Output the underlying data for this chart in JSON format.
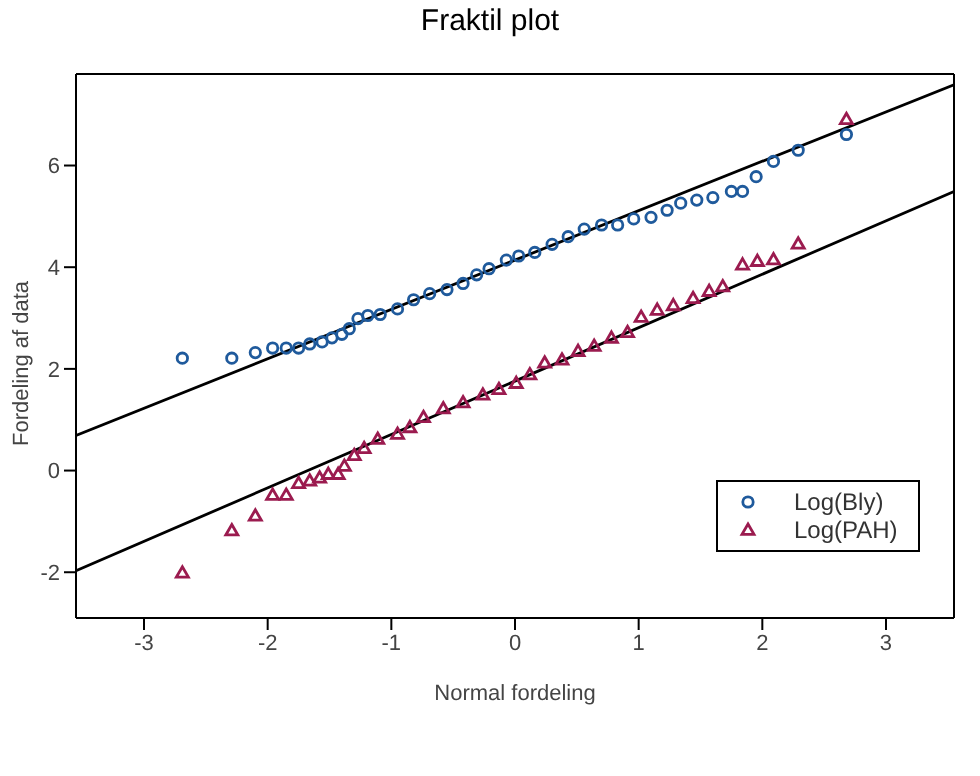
{
  "chart_data": {
    "type": "scatter",
    "title": "Fraktil plot",
    "xlabel": "Normal fordeling",
    "ylabel": "Fordeling af data",
    "xlim": [
      -3.55,
      3.55
    ],
    "ylim": [
      -2.9,
      7.8
    ],
    "xticks": [
      -3,
      -2,
      -1,
      0,
      1,
      2,
      3
    ],
    "yticks": [
      -2,
      0,
      2,
      4,
      6
    ],
    "grid": false,
    "legend": "bottom right",
    "series": [
      {
        "name": "Log(Bly)",
        "color": "#1f5a9c",
        "marker": "circle",
        "x": [
          -2.69,
          -2.29,
          -2.1,
          -1.96,
          -1.85,
          -1.75,
          -1.66,
          -1.56,
          -1.48,
          -1.4,
          -1.34,
          -1.27,
          -1.19,
          -1.09,
          -0.95,
          -0.82,
          -0.69,
          -0.55,
          -0.42,
          -0.31,
          -0.21,
          -0.07,
          0.03,
          0.16,
          0.3,
          0.43,
          0.56,
          0.7,
          0.83,
          0.96,
          1.1,
          1.23,
          1.34,
          1.47,
          1.6,
          1.75,
          1.84,
          1.95,
          2.09,
          2.29,
          2.68
        ],
        "values": [
          2.21,
          2.21,
          2.32,
          2.41,
          2.41,
          2.41,
          2.49,
          2.53,
          2.61,
          2.68,
          2.79,
          2.99,
          3.05,
          3.07,
          3.18,
          3.36,
          3.48,
          3.56,
          3.68,
          3.85,
          3.97,
          4.14,
          4.22,
          4.29,
          4.45,
          4.6,
          4.75,
          4.83,
          4.83,
          4.95,
          4.98,
          5.12,
          5.26,
          5.32,
          5.37,
          5.49,
          5.49,
          5.78,
          6.08,
          6.3,
          6.61
        ]
      },
      {
        "name": "Log(PAH)",
        "color": "#9b1b4f",
        "marker": "triangle",
        "x": [
          -2.69,
          -2.29,
          -2.1,
          -1.96,
          -1.85,
          -1.75,
          -1.66,
          -1.58,
          -1.51,
          -1.43,
          -1.38,
          -1.3,
          -1.22,
          -1.11,
          -0.95,
          -0.85,
          -0.74,
          -0.58,
          -0.42,
          -0.26,
          -0.13,
          0.01,
          0.12,
          0.24,
          0.38,
          0.51,
          0.64,
          0.78,
          0.91,
          1.02,
          1.15,
          1.28,
          1.44,
          1.57,
          1.68,
          1.84,
          1.96,
          2.09,
          2.29,
          2.68
        ],
        "values": [
          -2.01,
          -1.18,
          -0.89,
          -0.48,
          -0.48,
          -0.25,
          -0.2,
          -0.14,
          -0.07,
          -0.07,
          0.09,
          0.3,
          0.44,
          0.62,
          0.72,
          0.85,
          1.05,
          1.22,
          1.34,
          1.49,
          1.6,
          1.72,
          1.89,
          2.12,
          2.18,
          2.35,
          2.45,
          2.61,
          2.72,
          3.02,
          3.16,
          3.25,
          3.39,
          3.53,
          3.62,
          4.05,
          4.12,
          4.15,
          4.46,
          6.91
        ]
      },
      {
        "type": "line",
        "color": "#000000",
        "line_style": "solid",
        "x": [
          -3.55,
          3.55
        ],
        "values": [
          0.69,
          7.59
        ]
      },
      {
        "type": "line",
        "color": "#000000",
        "line_style": "solid",
        "x": [
          -3.55,
          3.55
        ],
        "values": [
          -1.97,
          5.49
        ]
      }
    ]
  }
}
